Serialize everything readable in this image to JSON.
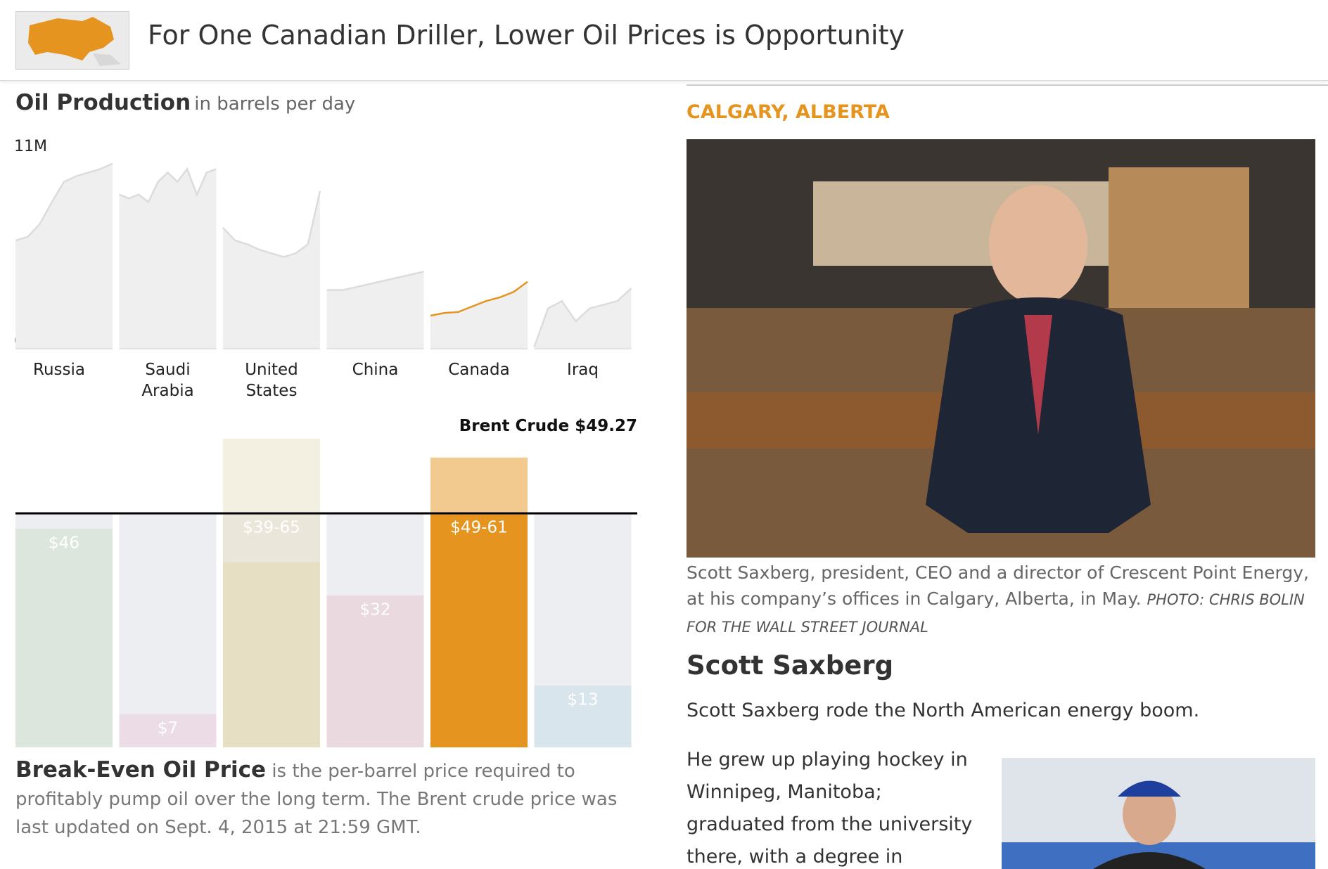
{
  "header": {
    "title": "For One Canadian Driller, Lower Oil Prices is Opportunity"
  },
  "chart_data": [
    {
      "type": "area-multiples",
      "title": "Oil Production",
      "subtitle": "in barrels per day",
      "ylim": [
        0,
        11000000
      ],
      "yticks": [
        0,
        {
          "value": 11000000,
          "label": "11M"
        }
      ],
      "grid": false,
      "series": [
        {
          "name": "Russia",
          "color": "#dcdcdc",
          "values": [
            5900000,
            6100000,
            6800000,
            8000000,
            9100000,
            9400000,
            9600000,
            9800000,
            10100000
          ]
        },
        {
          "name": "Saudi Arabia",
          "color": "#dcdcdc",
          "values": [
            8400000,
            8200000,
            8400000,
            8000000,
            9100000,
            9600000,
            9100000,
            9800000,
            8400000,
            9600000,
            9800000
          ]
        },
        {
          "name": "United States",
          "color": "#dcdcdc",
          "values": [
            6600000,
            5900000,
            5700000,
            5400000,
            5200000,
            5000000,
            5200000,
            5700000,
            8600000
          ]
        },
        {
          "name": "China",
          "color": "#dcdcdc",
          "values": [
            3200000,
            3200000,
            3400000,
            3600000,
            3800000,
            4000000,
            4200000
          ]
        },
        {
          "name": "Canada",
          "color": "#e5941f",
          "values": [
            1800000,
            1950000,
            2000000,
            2300000,
            2600000,
            2800000,
            3100000,
            3650000
          ]
        },
        {
          "name": "Iraq",
          "color": "#dcdcdc",
          "values": [
            100000,
            2200000,
            2600000,
            1500000,
            2200000,
            2400000,
            2600000,
            3300000
          ]
        }
      ]
    },
    {
      "type": "range-bar",
      "title": "Break-Even Oil Price",
      "description": "is the per-barrel price required to profitably pump oil over the long term. The Brent crude price was last updated on Sept. 4, 2015 at 21:59 GMT.",
      "categories": [
        "Russia",
        "Saudi Arabia",
        "United States",
        "China",
        "Canada",
        "Iraq"
      ],
      "values": [
        46,
        7,
        39,
        32,
        49,
        13
      ],
      "high": [
        null,
        null,
        65,
        null,
        61,
        null
      ],
      "value_labels": [
        "$46",
        "$7",
        "$39-65",
        "$32",
        "$49-61",
        "$13"
      ],
      "colors": [
        "#dde6dc",
        "#ecdce5",
        "#e7dfc3",
        "#ead9de",
        "#e5941f",
        "#d8e5ec"
      ],
      "ylim": [
        0,
        70
      ],
      "reference_line": {
        "name": "Brent Crude",
        "value": 49.27,
        "value_label": "$49.27"
      }
    }
  ],
  "article": {
    "dateline": "CALGARY, ALBERTA",
    "caption": "Scott Saxberg, president, CEO and a director of Crescent Point Energy, at his company’s offices in Calgary, Alberta, in May.",
    "credit": "PHOTO: CHRIS BOLIN FOR THE WALL STREET JOURNAL",
    "heading": "Scott Saxberg",
    "paragraphs": [
      "Scott Saxberg rode the North American energy boom.",
      "He grew up playing hockey in Winnipeg, Manitoba; graduated from the university there, with a degree in"
    ]
  }
}
